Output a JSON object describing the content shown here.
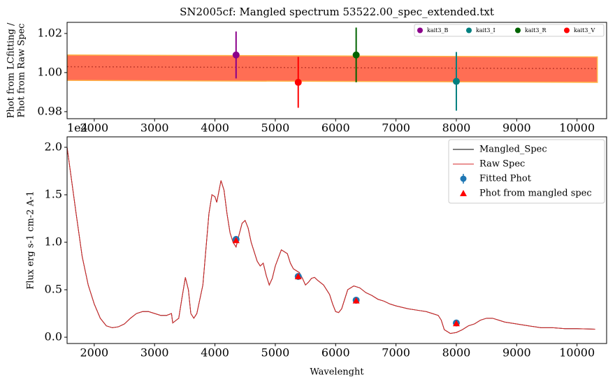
{
  "chart_data": [
    {
      "type": "errorbar",
      "title": "SN2005cf: Mangled spectrum 53522.00_spec_extended.txt",
      "ylabel": [
        "Phot from LCfitting /",
        "Phot from Raw Spec"
      ],
      "offset_text": "1e4",
      "xlim": [
        1550,
        10490
      ],
      "ylim": [
        0.9764,
        1.0257
      ],
      "xticks": [
        2000,
        3000,
        4000,
        5000,
        6000,
        7000,
        8000,
        9000,
        10000
      ],
      "yticks": [
        0.98,
        {
          "value": 1,
          "label": "1.00"
        },
        1.02
      ],
      "band": {
        "x": [
          1550,
          10336
        ],
        "upper": [
          1.009,
          1.008
        ],
        "lower": [
          0.996,
          0.995
        ],
        "color": "#ff6e54",
        "edge": "#ffb347"
      },
      "ratio_line": {
        "x": [
          1550,
          10336
        ],
        "values": [
          1.003,
          1.002
        ],
        "color": "#c0392b"
      },
      "legend": "upper right",
      "series": [
        {
          "name": "kait3_B",
          "color": "#8b008b",
          "x": [
            4350
          ],
          "values": [
            1.009
          ],
          "errors": [
            0.012
          ]
        },
        {
          "name": "kait3_I",
          "color": "#008080",
          "x": [
            8000
          ],
          "values": [
            0.9955
          ],
          "errors": [
            0.015
          ]
        },
        {
          "name": "kait3_R",
          "color": "#006400",
          "x": [
            6340
          ],
          "values": [
            1.009
          ],
          "errors": [
            0.014
          ]
        },
        {
          "name": "kait3_V",
          "color": "#ff0000",
          "x": [
            5380
          ],
          "values": [
            0.995
          ],
          "errors": [
            0.013
          ]
        }
      ]
    },
    {
      "type": "line",
      "xlabel": "Wavelenght",
      "ylabel": "Flux erg s-1 cm-2 A-1",
      "xlim": [
        1550,
        10490
      ],
      "ylim": [
        -0.066,
        2.11
      ],
      "xticks": [
        2000,
        3000,
        4000,
        5000,
        6000,
        7000,
        8000,
        9000,
        10000
      ],
      "yticks": [
        {
          "value": 0,
          "label": "0.0"
        },
        0.5,
        {
          "value": 1,
          "label": "1.0"
        },
        1.5,
        {
          "value": 2,
          "label": "2.0"
        }
      ],
      "legend": "upper right",
      "x": [
        1550,
        1700,
        1800,
        1900,
        2000,
        2100,
        2200,
        2300,
        2400,
        2500,
        2600,
        2700,
        2800,
        2900,
        3000,
        3100,
        3200,
        3280,
        3300,
        3400,
        3450,
        3510,
        3560,
        3600,
        3650,
        3700,
        3800,
        3900,
        3950,
        4000,
        4030,
        4100,
        4150,
        4200,
        4250,
        4300,
        4350,
        4400,
        4450,
        4500,
        4550,
        4600,
        4700,
        4750,
        4800,
        4850,
        4900,
        4950,
        5000,
        5100,
        5150,
        5200,
        5250,
        5300,
        5400,
        5450,
        5500,
        5550,
        5600,
        5650,
        5700,
        5800,
        5900,
        5950,
        6000,
        6050,
        6100,
        6200,
        6300,
        6400,
        6500,
        6600,
        6700,
        6800,
        6900,
        7000,
        7200,
        7400,
        7500,
        7600,
        7700,
        7750,
        7800,
        7900,
        8000,
        8100,
        8200,
        8300,
        8400,
        8500,
        8600,
        8700,
        8800,
        9000,
        9200,
        9400,
        9600,
        9800,
        10000,
        10300
      ],
      "series": [
        {
          "name": "Mangled_Spec",
          "color": "#000000",
          "values": [
            2.0,
            1.3,
            0.85,
            0.55,
            0.35,
            0.2,
            0.12,
            0.1,
            0.11,
            0.14,
            0.2,
            0.25,
            0.27,
            0.27,
            0.25,
            0.23,
            0.23,
            0.25,
            0.15,
            0.2,
            0.4,
            0.63,
            0.5,
            0.25,
            0.2,
            0.25,
            0.55,
            1.3,
            1.5,
            1.48,
            1.42,
            1.65,
            1.55,
            1.3,
            1.1,
            1.0,
            0.95,
            1.08,
            1.2,
            1.23,
            1.15,
            1.0,
            0.8,
            0.75,
            0.78,
            0.65,
            0.55,
            0.62,
            0.75,
            0.92,
            0.9,
            0.88,
            0.78,
            0.72,
            0.68,
            0.62,
            0.55,
            0.58,
            0.62,
            0.63,
            0.6,
            0.55,
            0.45,
            0.35,
            0.27,
            0.26,
            0.3,
            0.5,
            0.54,
            0.52,
            0.47,
            0.44,
            0.4,
            0.38,
            0.35,
            0.33,
            0.3,
            0.28,
            0.27,
            0.25,
            0.23,
            0.18,
            0.08,
            0.04,
            0.05,
            0.08,
            0.12,
            0.14,
            0.18,
            0.2,
            0.2,
            0.18,
            0.16,
            0.14,
            0.12,
            0.1,
            0.1,
            0.09,
            0.09,
            0.085
          ]
        },
        {
          "name": "Raw Spec",
          "color": "#d62728",
          "values": [
            2.0,
            1.3,
            0.85,
            0.55,
            0.35,
            0.2,
            0.12,
            0.1,
            0.11,
            0.14,
            0.2,
            0.25,
            0.27,
            0.27,
            0.25,
            0.23,
            0.23,
            0.25,
            0.15,
            0.2,
            0.4,
            0.63,
            0.5,
            0.25,
            0.2,
            0.25,
            0.55,
            1.3,
            1.5,
            1.48,
            1.42,
            1.65,
            1.55,
            1.3,
            1.1,
            1.0,
            0.95,
            1.08,
            1.2,
            1.23,
            1.15,
            1.0,
            0.8,
            0.75,
            0.78,
            0.65,
            0.55,
            0.62,
            0.75,
            0.92,
            0.9,
            0.88,
            0.78,
            0.72,
            0.68,
            0.62,
            0.55,
            0.58,
            0.62,
            0.63,
            0.6,
            0.55,
            0.45,
            0.35,
            0.27,
            0.26,
            0.3,
            0.5,
            0.54,
            0.52,
            0.47,
            0.44,
            0.4,
            0.38,
            0.35,
            0.33,
            0.3,
            0.28,
            0.27,
            0.25,
            0.23,
            0.18,
            0.08,
            0.04,
            0.05,
            0.08,
            0.12,
            0.14,
            0.18,
            0.2,
            0.2,
            0.18,
            0.16,
            0.14,
            0.12,
            0.1,
            0.1,
            0.09,
            0.09,
            0.085
          ]
        }
      ],
      "points": [
        {
          "name": "Fitted Phot",
          "color": "#1f77b4",
          "marker": "o",
          "x": [
            4350,
            5380,
            6340,
            8000
          ],
          "values": [
            1.03,
            0.64,
            0.39,
            0.15
          ]
        },
        {
          "name": "Phot from mangled spec",
          "color": "#ff0000",
          "marker": "^",
          "x": [
            4350,
            5380,
            6340,
            8000
          ],
          "values": [
            1.02,
            0.64,
            0.385,
            0.145
          ]
        }
      ]
    }
  ]
}
